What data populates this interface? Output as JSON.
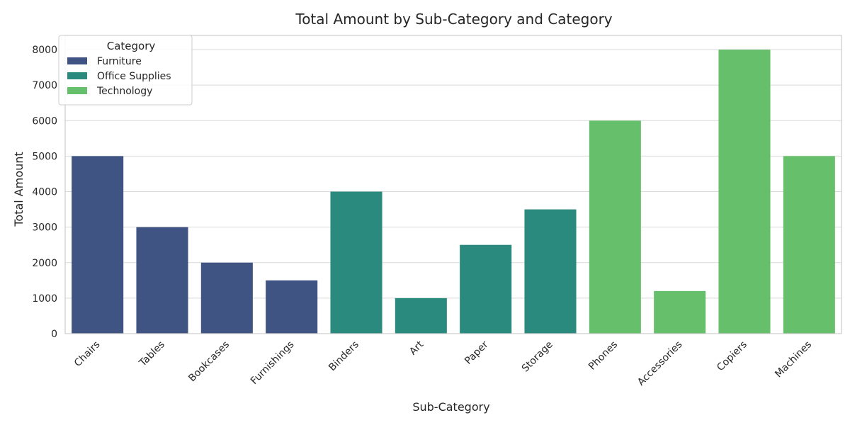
{
  "chart_data": {
    "type": "bar",
    "title": "Total Amount by Sub-Category and Category",
    "xlabel": "Sub-Category",
    "ylabel": "Total Amount",
    "ylim": [
      0,
      8400
    ],
    "yticks": [
      0,
      1000,
      2000,
      3000,
      4000,
      5000,
      6000,
      7000,
      8000
    ],
    "grid": true,
    "legend": {
      "title": "Category",
      "placement": "top-left",
      "entries": [
        "Furniture",
        "Office Supplies",
        "Technology"
      ]
    },
    "colors": {
      "Furniture": "#3f5482",
      "Office Supplies": "#2a8a7d",
      "Technology": "#66bf6a",
      "grid": "#d9d9d9",
      "axes_edge": "#cccccc"
    },
    "categories": [
      "Chairs",
      "Tables",
      "Bookcases",
      "Furnishings",
      "Binders",
      "Art",
      "Paper",
      "Storage",
      "Phones",
      "Accessories",
      "Copiers",
      "Machines"
    ],
    "bar_category": [
      "Furniture",
      "Furniture",
      "Furniture",
      "Furniture",
      "Office Supplies",
      "Office Supplies",
      "Office Supplies",
      "Office Supplies",
      "Technology",
      "Technology",
      "Technology",
      "Technology"
    ],
    "values": [
      5000,
      3000,
      2000,
      1500,
      4000,
      1000,
      2500,
      3500,
      6000,
      1200,
      8000,
      5000
    ]
  }
}
